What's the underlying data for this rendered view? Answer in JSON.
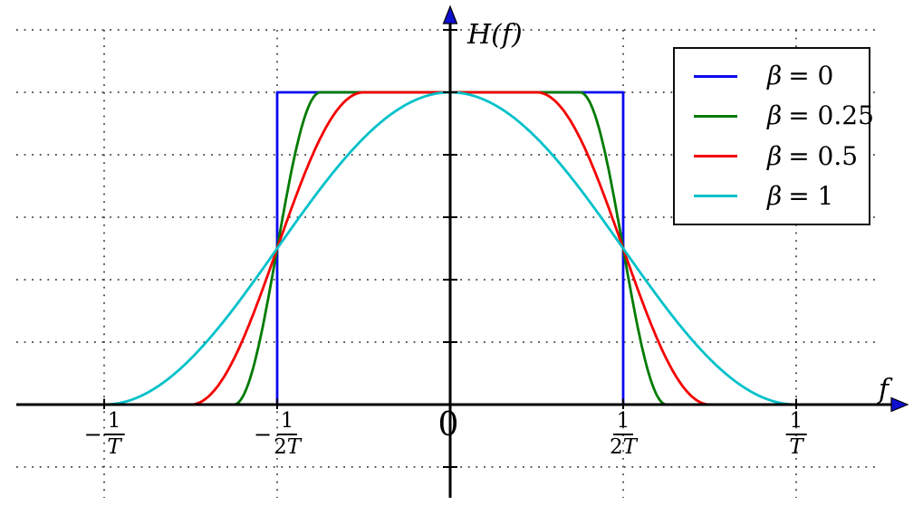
{
  "figure": {
    "background": "#ffffff",
    "axis_color": "#000000",
    "arrow_color": "#0f0fd0",
    "grid_color": "#232323",
    "grid_style": "dotted"
  },
  "chart_data": {
    "type": "line",
    "title": "",
    "xlabel": "f",
    "ylabel": "H(f)",
    "origin_label": "0",
    "x_unit": "multiples of 1/T",
    "xlim_in_1_over_T": [
      -1.3,
      1.37
    ],
    "ylim": [
      -0.35,
      1.28
    ],
    "grid": "dotted",
    "legend_position": "upper right",
    "x_gridlines_in_1_over_T": [
      -1,
      -0.5,
      0.5,
      1
    ],
    "y_gridlines": [
      1.2,
      1.0,
      0.8,
      0.6,
      0.4,
      0.2,
      -0.2
    ],
    "x_ticks": [
      {
        "u": -1,
        "sign": "−",
        "num": "1",
        "den_coef": "",
        "den_var": "T"
      },
      {
        "u": -0.5,
        "sign": "−",
        "num": "1",
        "den_coef": "2",
        "den_var": "T"
      },
      {
        "u": 0,
        "plain": "0"
      },
      {
        "u": 0.5,
        "sign": "",
        "num": "1",
        "den_coef": "2",
        "den_var": "T"
      },
      {
        "u": 1,
        "sign": "",
        "num": "1",
        "den_coef": "",
        "den_var": "T"
      }
    ],
    "series": [
      {
        "label_symbol": "β",
        "label_rest": "= 0",
        "beta": 0,
        "color": "#0a0af0",
        "shape": "ideal brick-wall rectangle: H=1 for |f|<1/(2T), 0 elsewhere",
        "points_in_1_over_T": [
          [
            -1.25,
            0
          ],
          [
            -0.5,
            0
          ],
          [
            -0.5,
            1
          ],
          [
            0.5,
            1
          ],
          [
            0.5,
            0
          ],
          [
            1.25,
            0
          ]
        ]
      },
      {
        "label_symbol": "β",
        "label_rest": "= 0.25",
        "beta": 0.25,
        "color": "#007b00",
        "shape": "raised cosine: H=1 for |f|<=0.375/T, cosine roll-off to 0 at 0.625/T"
      },
      {
        "label_symbol": "β",
        "label_rest": "= 0.5",
        "beta": 0.5,
        "color": "#f50000",
        "shape": "raised cosine: H=1 for |f|<=0.25/T, cosine roll-off to 0 at 0.75/T"
      },
      {
        "label_symbol": "β",
        "label_rest": "= 1",
        "beta": 1,
        "color": "#00c1c9",
        "shape": "raised cosine: H=cos^2(pi*f*T/2), zero at 1/T"
      }
    ],
    "key_points": "all roll-off curves pass through H=0.5 at f=±1/(2T); peak H=1 at f=0"
  }
}
